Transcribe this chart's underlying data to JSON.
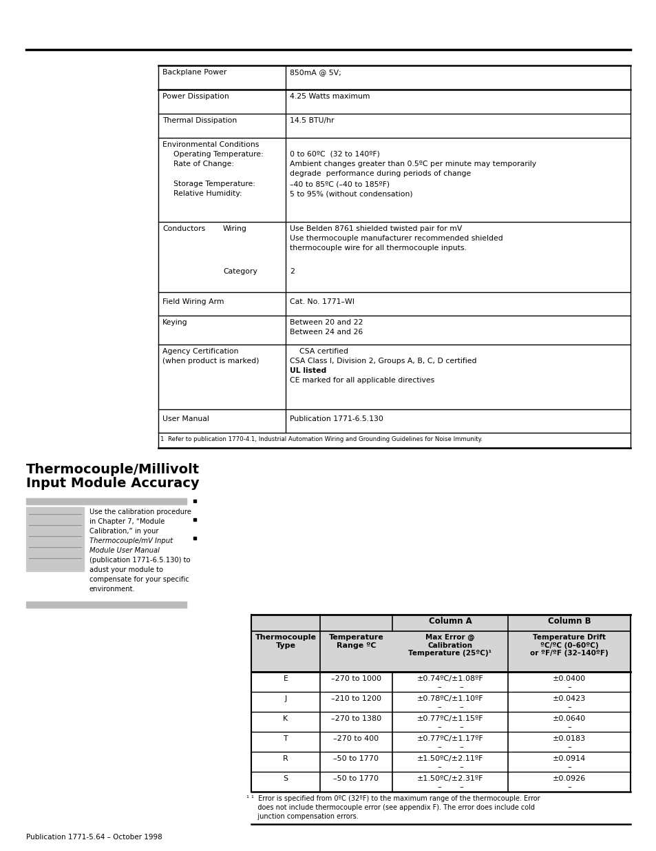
{
  "page_bg": "#ffffff",
  "spec_table_rows": [
    {
      "label": "Backplane Power",
      "value": "850mA @ 5V;",
      "type": "simple"
    },
    {
      "label": "Power Dissipation",
      "value": "4.25 Watts maximum",
      "type": "simple"
    },
    {
      "label": "Thermal Dissipation",
      "value": "14.5 BTU/hr",
      "type": "simple"
    },
    {
      "label": "Environmental Conditions",
      "type": "env"
    },
    {
      "label": "Conductors",
      "type": "conductors"
    },
    {
      "label": "Field Wiring Arm",
      "value": "Cat. No. 1771–WI",
      "type": "simple"
    },
    {
      "label": "Keying",
      "value1": "Between 20 and 22",
      "value2": "Between 24 and 26",
      "type": "two_line_value"
    },
    {
      "label": "Agency Certification",
      "type": "agency"
    },
    {
      "label": "User Manual",
      "value": "Publication 1771-6.5.130",
      "type": "simple"
    }
  ],
  "spec_footnote": "1  Refer to publication 1770-4.1, Industrial Automation Wiring and Grounding Guidelines for Noise Immunity.",
  "section_title_line1": "Thermocouple/Millivolt",
  "section_title_line2": "Input Module Accuracy",
  "sidebar_text_lines": [
    "Use the calibration procedure",
    "in Chapter 7, “Module",
    "Calibration,” in your",
    "Thermocouple/mV Input",
    "Module User Manual",
    "(publication 1771-6.5.130) to",
    "adust your module to",
    "compensate for your specific",
    "environment."
  ],
  "acc_col_a_header": "Column A",
  "acc_col_b_header": "Column B",
  "acc_tc_header": "Thermocouple\nType",
  "acc_tr_header": "Temperature\nRange ºC",
  "acc_cola_sub": "Max Error @\nCalibration\nTemperature (25ºC)¹",
  "acc_colb_sub": "Temperature Drift\nºC/ºC (0–60ºC)\nor ºF/ºF (32–140ºF)",
  "acc_rows": [
    {
      "tc": "E",
      "tr": "–270 to 1000",
      "ca": "±0.74ºC/±1.08ºF",
      "cb": "±0.0400",
      "dash": true
    },
    {
      "tc": "J",
      "tr": "–210 to 1200",
      "ca": "±0.78ºC/±1.10ºF",
      "cb": "±0.0423",
      "dash": true
    },
    {
      "tc": "K",
      "tr": "–270 to 1380",
      "ca": "±0.77ºC/±1.15ºF",
      "cb": "±0.0640",
      "dash": true
    },
    {
      "tc": "T",
      "tr": "–270 to 400",
      "ca": "±0.77ºC/±1.17ºF",
      "cb": "±0.0183",
      "dash": true
    },
    {
      "tc": "R",
      "tr": "–50 to 1770",
      "ca": "±1.50ºC/±2.11ºF",
      "cb": "±0.0914",
      "dash": true
    },
    {
      "tc": "S",
      "tr": "–50 to 1770",
      "ca": "±1.50ºC/±2.31ºF",
      "cb": "±0.0926",
      "dash": true
    }
  ],
  "acc_footnote_line1": "¹  Error is specified from 0ºC (32ºF) to the maximum range of the thermocouple. Error",
  "acc_footnote_line2": "   does not include thermocouple error (see appendix F). The error does include cold",
  "acc_footnote_line3": "   junction compensation errors.",
  "footer": "Publication 1771-5.64 – October 1998"
}
